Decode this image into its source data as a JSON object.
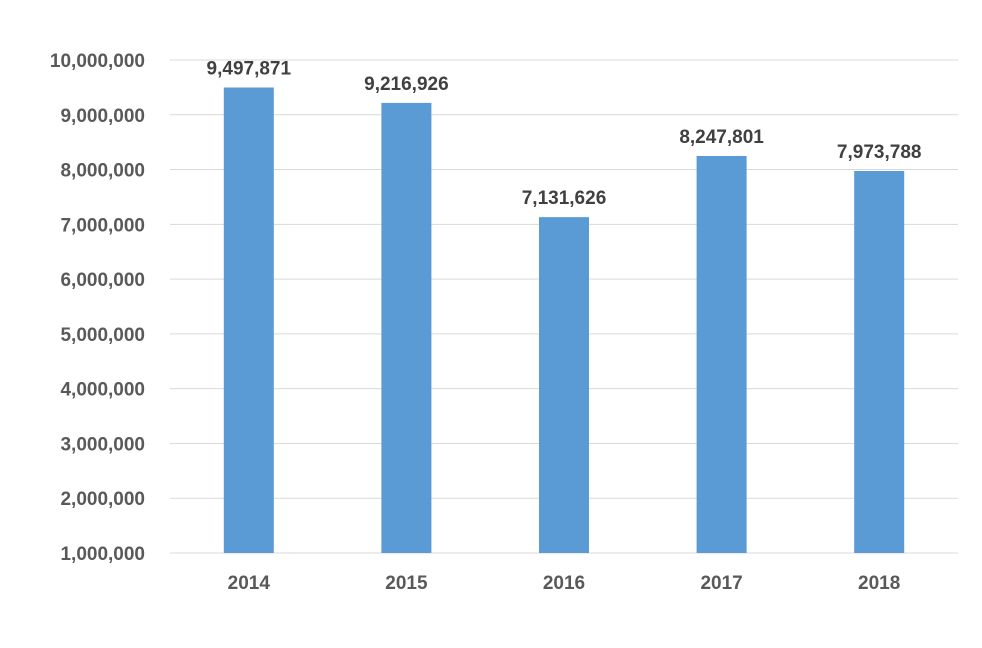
{
  "chart_data": {
    "type": "bar",
    "title": "",
    "xlabel": "",
    "ylabel": "",
    "categories": [
      "2014",
      "2015",
      "2016",
      "2017",
      "2018"
    ],
    "values": [
      9497871,
      9216926,
      7131626,
      8247801,
      7973788
    ],
    "value_labels": [
      "9,497,871",
      "9,216,926",
      "7,131,626",
      "8,247,801",
      "7,973,788"
    ],
    "ylim": [
      1000000,
      10000000
    ],
    "y_ticks": [
      1000000,
      2000000,
      3000000,
      4000000,
      5000000,
      6000000,
      7000000,
      8000000,
      9000000,
      10000000
    ],
    "y_tick_labels": [
      "1,000,000",
      "2,000,000",
      "3,000,000",
      "4,000,000",
      "5,000,000",
      "6,000,000",
      "7,000,000",
      "8,000,000",
      "9,000,000",
      "10,000,000"
    ],
    "grid": true,
    "legend": "none",
    "bar_color": "#5b9bd5"
  }
}
